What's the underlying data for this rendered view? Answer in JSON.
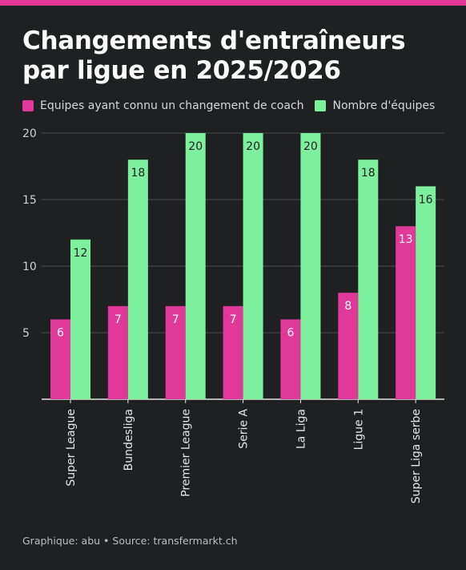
{
  "title": "Changements d'entraîneurs par ligue en 2025/2026",
  "footer": "Graphique: abu • Source: transfermarkt.ch",
  "colors": {
    "accent": "#e0399a",
    "series1": "#e0399a",
    "series2": "#7cf09d",
    "background": "#1f2022"
  },
  "chart_data": {
    "type": "bar",
    "categories": [
      "Super League",
      "Bundesliga",
      "Premier League",
      "Serie A",
      "La Liga",
      "Ligue 1",
      "Super Liga serbe"
    ],
    "series": [
      {
        "name": "Equipes ayant connu un changement de coach",
        "values": [
          6,
          7,
          7,
          7,
          6,
          8,
          13
        ]
      },
      {
        "name": "Nombre d'équipes",
        "values": [
          12,
          18,
          20,
          20,
          20,
          18,
          16
        ]
      }
    ],
    "yticks": [
      5,
      10,
      15,
      20
    ],
    "ylim": [
      0,
      20
    ],
    "grid": true,
    "legend": "top-left"
  }
}
